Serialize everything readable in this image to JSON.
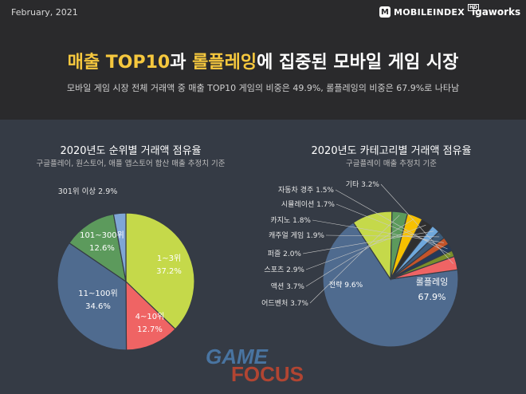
{
  "header": {
    "date": "February, 2021",
    "logo_main": "MOBILEINDEX",
    "logo_badge": "HD",
    "logo_m": "M",
    "logo_partner": "igaworks",
    "title_part1": "매출 TOP10",
    "title_part2": "과 ",
    "title_part3": "롤플레잉",
    "title_part4": "에 집중된 모바일 게임 시장",
    "subtitle": "모바일 게임 시장 전체 거래액 중 매출 TOP10 게임의 비중은 49.9%, 롤플레잉의 비중은 67.9%로 나타남"
  },
  "colors": {
    "highlight": "#f6c83e",
    "background": "#2a2a2c",
    "panel": "#353b45"
  },
  "watermark": {
    "line1": "GAME",
    "line2": "FOCUS"
  },
  "chart_data": [
    {
      "type": "pie",
      "title": "2020년도 순위별 거래액 점유율",
      "subtitle": "구글플레이, 원스토어, 애플 앱스토어 합산 매출 추정치 기준",
      "slices": [
        {
          "label": "1~3위",
          "value": 37.2,
          "color": "#c5d94a"
        },
        {
          "label": "4~10위",
          "value": 12.7,
          "color": "#ef6464"
        },
        {
          "label": "11~100위",
          "value": 34.6,
          "color": "#4f6b8f"
        },
        {
          "label": "101~300위",
          "value": 12.6,
          "color": "#5c9a5c"
        },
        {
          "label": "301위 이상",
          "value": 2.9,
          "color": "#7fa6d6"
        }
      ]
    },
    {
      "type": "pie",
      "title": "2020년도 카테고리별 거래액 점유율",
      "subtitle": "구글플레이 매출 추정치 기준",
      "slices": [
        {
          "label": "롤플레잉",
          "value": 67.9,
          "color": "#4f6b8f"
        },
        {
          "label": "전략",
          "value": 9.6,
          "color": "#c5d94a"
        },
        {
          "label": "어드벤처",
          "value": 3.7,
          "color": "#5c9a5c"
        },
        {
          "label": "액션",
          "value": 3.7,
          "color": "#f6c000"
        },
        {
          "label": "스포츠",
          "value": 2.9,
          "color": "#2f2f2f"
        },
        {
          "label": "퍼즐",
          "value": 2.0,
          "color": "#6fa8dc"
        },
        {
          "label": "캐주얼 게임",
          "value": 1.9,
          "color": "#3c5a78"
        },
        {
          "label": "카지노",
          "value": 1.8,
          "color": "#c4542a"
        },
        {
          "label": "시뮬레이션",
          "value": 1.7,
          "color": "#23395b"
        },
        {
          "label": "자동차 경주",
          "value": 1.5,
          "color": "#7a8f2a"
        },
        {
          "label": "기타",
          "value": 3.2,
          "color": "#ef6464"
        }
      ]
    }
  ]
}
